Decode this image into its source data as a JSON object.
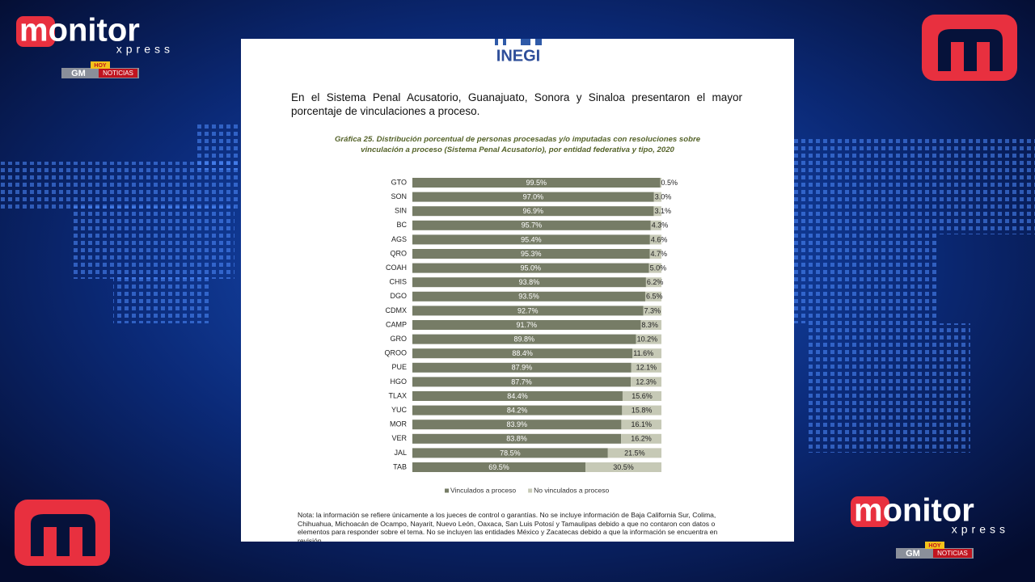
{
  "branding": {
    "top_left": {
      "name": "monitor",
      "sub": "xpress",
      "badge_hoy": "HOY",
      "badge_gm": "GM",
      "badge_noticias": "NOTICIAS"
    },
    "bottom_right": {
      "name": "monitor",
      "sub": "xpress",
      "badge_hoy": "HOY",
      "badge_gm": "GM",
      "badge_noticias": "NOTICIAS"
    }
  },
  "document": {
    "logo": "INEGI",
    "intro": "En el Sistema Penal Acusatorio, Guanajuato, Sonora y Sinaloa presentaron el mayor porcentaje de vinculaciones a proceso.",
    "note": "Nota: la información se refiere únicamente a los jueces de control o garantías. No se incluye información de Baja California Sur, Colima, Chihuahua, Michoacán de Ocampo, Nayarit, Nuevo León, Oaxaca, San Luis Potosí y Tamaulipas debido a que no contaron con datos o elementos para responder sobre el tema. No se incluyen las entidades México y Zacatecas debido a que la información se encuentra en revisión."
  },
  "chart_data": {
    "type": "stacked_bar_h",
    "title": "Gráfica 25. Distribución porcentual de personas procesadas y/o imputadas con resoluciones sobre vinculación a proceso (Sistema Penal Acusatorio), por entidad federativa y tipo, 2020",
    "categories": [
      "GTO",
      "SON",
      "SIN",
      "BC",
      "AGS",
      "QRO",
      "COAH",
      "CHIS",
      "DGO",
      "CDMX",
      "CAMP",
      "GRO",
      "QROO",
      "PUE",
      "HGO",
      "TLAX",
      "YUC",
      "MOR",
      "VER",
      "JAL",
      "TAB"
    ],
    "series": [
      {
        "name": "Vinculados a proceso",
        "color": "#767c66",
        "values": [
          99.5,
          97.0,
          96.9,
          95.7,
          95.4,
          95.3,
          95.0,
          93.8,
          93.5,
          92.7,
          91.7,
          89.8,
          88.4,
          87.9,
          87.7,
          84.4,
          84.2,
          83.9,
          83.8,
          78.5,
          69.5
        ],
        "value_labels": [
          "99.5%",
          "97.0%",
          "96.9%",
          "95.7%",
          "95.4%",
          "95.3%",
          "95.0%",
          "93.8%",
          "93.5%",
          "92.7%",
          "91.7%",
          "89.8%",
          "88.4%",
          "87.9%",
          "87.7%",
          "84.4%",
          "84.2%",
          "83.9%",
          "83.8%",
          "78.5%",
          "69.5%"
        ]
      },
      {
        "name": "No vinculados a proceso",
        "color": "#c6c9b6",
        "values": [
          0.5,
          3.0,
          3.1,
          4.3,
          4.6,
          4.7,
          5.0,
          6.2,
          6.5,
          7.3,
          8.3,
          10.2,
          11.6,
          12.1,
          12.3,
          15.6,
          15.8,
          16.1,
          16.2,
          21.5,
          30.5
        ],
        "value_labels": [
          "0.5%",
          "3.0%",
          "3.1%",
          "4.3%",
          "4.6%",
          "4.7%",
          "5.0%",
          "6.2%",
          "6.5%",
          "7.3%",
          "8.3%",
          "10.2%",
          "11.6%",
          "12.1%",
          "12.3%",
          "15.6%",
          "15.8%",
          "16.1%",
          "16.2%",
          "21.5%",
          "30.5%"
        ]
      }
    ],
    "legend": "bottom"
  }
}
